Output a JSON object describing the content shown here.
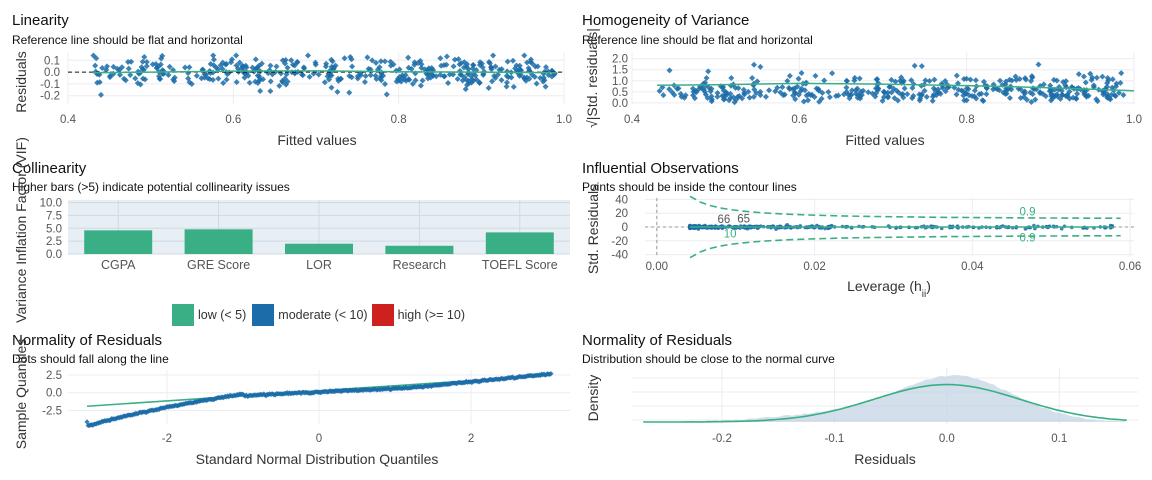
{
  "colors": {
    "green": "#3aaf85",
    "blue": "#1b6ca8",
    "red": "#cd201f",
    "light": "#dcdce6",
    "band": "#e1ebf3",
    "grid": "#ececf2"
  },
  "chart_data": [
    {
      "id": "linearity",
      "type": "scatter",
      "title": "Linearity",
      "subtitle": "Reference line should be flat and horizontal",
      "xlabel": "Fitted values",
      "ylabel": "Residuals",
      "xlim": [
        0.4,
        1.0
      ],
      "ylim": [
        -0.27,
        0.17
      ],
      "xticks": [
        "0.4",
        "0.6",
        "0.8",
        "1.0"
      ],
      "yticks": [
        "0.1",
        "0.0",
        "-0.1",
        "-0.2"
      ],
      "reference_line": 0,
      "smooth": {
        "x": [
          0.43,
          0.5,
          0.6,
          0.7,
          0.8,
          0.9,
          0.99
        ],
        "y": [
          -0.005,
          0.0,
          0.008,
          0.01,
          0.003,
          0.0,
          -0.005
        ]
      }
    },
    {
      "id": "homogeneity",
      "type": "scatter",
      "title": "Homogeneity of Variance",
      "subtitle": "Reference line should be flat and horizontal",
      "xlabel": "Fitted values",
      "ylabel": "√|Std. residuals|",
      "xlim": [
        0.4,
        1.0
      ],
      "ylim": [
        -0.05,
        2.3
      ],
      "xticks": [
        "0.4",
        "0.6",
        "0.8",
        "1.0"
      ],
      "yticks": [
        "2.0",
        "1.5",
        "1.0",
        "0.5",
        "0.0"
      ],
      "smooth": {
        "x": [
          0.43,
          0.5,
          0.6,
          0.7,
          0.8,
          0.9,
          1.0
        ],
        "y": [
          0.8,
          0.82,
          0.88,
          0.85,
          0.78,
          0.68,
          0.55
        ]
      }
    },
    {
      "id": "collinearity",
      "type": "bar",
      "title": "Collinearity",
      "subtitle": "Higher bars (>5) indicate potential collinearity issues",
      "ylabel": "Variance Inflation Factor (VIF)",
      "categories": [
        "CGPA",
        "GRE Score",
        "LOR",
        "Research",
        "TOEFL Score"
      ],
      "values": [
        4.6,
        4.8,
        2.0,
        1.6,
        4.2
      ],
      "ylim": [
        0,
        10.5
      ],
      "yticks": [
        "10.0",
        "7.5",
        "5.0",
        "2.5",
        "0.0"
      ],
      "legend": [
        "low (< 5)",
        "moderate (< 10)",
        "high (>= 10)"
      ]
    },
    {
      "id": "influential",
      "type": "scatter",
      "title": "Influential Observations",
      "subtitle": "Points should be inside the contour lines",
      "xlabel": "Leverage (h",
      "xlabel_sub": "ii",
      ")": ")",
      "ylabel": "Std. Residuals",
      "xlim": [
        -0.0015,
        0.0605
      ],
      "ylim": [
        -42,
        42
      ],
      "xticks": [
        "0.00",
        "0.02",
        "0.04",
        "0.06"
      ],
      "yticks": [
        "40",
        "20",
        "0",
        "-20",
        "-40"
      ],
      "contour_labels": [
        "0.9",
        "0.9"
      ],
      "point_labels": [
        "66",
        "65",
        "10"
      ]
    },
    {
      "id": "qq",
      "type": "scatter",
      "title": "Normality of Residuals",
      "subtitle": "Dots should fall along the line",
      "xlabel": "Standard Normal Distribution Quantiles",
      "ylabel": "Sample Quantiles",
      "xlim": [
        -3.3,
        3.3
      ],
      "ylim": [
        -4.4,
        3.2
      ],
      "xticks": [
        "-2",
        "0",
        "2"
      ],
      "yticks": [
        "2.5",
        "0.0",
        "-2.5"
      ]
    },
    {
      "id": "density",
      "type": "area",
      "title": "Normality of Residuals",
      "subtitle": "Distribution should be close to the normal curve",
      "xlabel": "Residuals",
      "ylabel": "Density",
      "xlim": [
        -0.28,
        0.17
      ],
      "xticks": [
        "-0.2",
        "-0.1",
        "0.0",
        "0.1"
      ]
    }
  ]
}
